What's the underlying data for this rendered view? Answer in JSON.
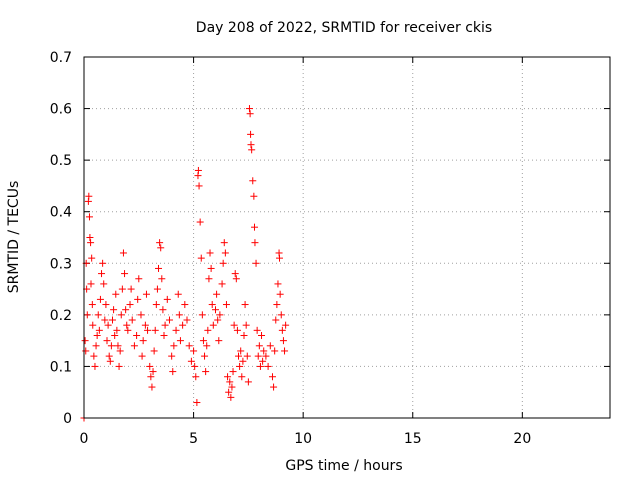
{
  "chart_data": {
    "type": "scatter",
    "title": "Day 208 of 2022, SRMTID for receiver ckis",
    "xlabel": "GPS time / hours",
    "ylabel": "SRMTID / TECUs",
    "xlim": [
      0,
      24
    ],
    "ylim": [
      0,
      0.7
    ],
    "grid": true,
    "marker": "+",
    "marker_color": "#ff0000",
    "x_ticks": [
      {
        "value": 0,
        "label": "0"
      },
      {
        "value": 5,
        "label": "5"
      },
      {
        "value": 10,
        "label": "10"
      },
      {
        "value": 15,
        "label": "15"
      },
      {
        "value": 20,
        "label": "20"
      }
    ],
    "y_ticks": [
      {
        "value": 0,
        "label": "0"
      },
      {
        "value": 0.1,
        "label": "0.1"
      },
      {
        "value": 0.2,
        "label": "0.2"
      },
      {
        "value": 0.3,
        "label": "0.3"
      },
      {
        "value": 0.4,
        "label": "0.4"
      },
      {
        "value": 0.5,
        "label": "0.5"
      },
      {
        "value": 0.6,
        "label": "0.6"
      },
      {
        "value": 0.7,
        "label": "0.7"
      }
    ],
    "series": [
      {
        "name": "SRMTID",
        "points": [
          [
            0.0,
            0.0
          ],
          [
            0.05,
            0.15
          ],
          [
            0.08,
            0.13
          ],
          [
            0.1,
            0.3
          ],
          [
            0.12,
            0.25
          ],
          [
            0.15,
            0.2
          ],
          [
            0.2,
            0.42
          ],
          [
            0.22,
            0.43
          ],
          [
            0.25,
            0.39
          ],
          [
            0.27,
            0.35
          ],
          [
            0.3,
            0.34
          ],
          [
            0.32,
            0.26
          ],
          [
            0.35,
            0.31
          ],
          [
            0.38,
            0.22
          ],
          [
            0.4,
            0.18
          ],
          [
            0.45,
            0.12
          ],
          [
            0.5,
            0.1
          ],
          [
            0.55,
            0.14
          ],
          [
            0.6,
            0.16
          ],
          [
            0.65,
            0.2
          ],
          [
            0.7,
            0.17
          ],
          [
            0.75,
            0.23
          ],
          [
            0.8,
            0.28
          ],
          [
            0.85,
            0.3
          ],
          [
            0.9,
            0.26
          ],
          [
            0.95,
            0.19
          ],
          [
            1.0,
            0.22
          ],
          [
            1.05,
            0.15
          ],
          [
            1.1,
            0.18
          ],
          [
            1.15,
            0.12
          ],
          [
            1.2,
            0.11
          ],
          [
            1.25,
            0.14
          ],
          [
            1.3,
            0.19
          ],
          [
            1.35,
            0.21
          ],
          [
            1.4,
            0.16
          ],
          [
            1.45,
            0.24
          ],
          [
            1.5,
            0.17
          ],
          [
            1.55,
            0.14
          ],
          [
            1.6,
            0.1
          ],
          [
            1.65,
            0.13
          ],
          [
            1.7,
            0.2
          ],
          [
            1.75,
            0.25
          ],
          [
            1.8,
            0.32
          ],
          [
            1.85,
            0.28
          ],
          [
            1.9,
            0.21
          ],
          [
            1.95,
            0.18
          ],
          [
            2.0,
            0.17
          ],
          [
            2.1,
            0.22
          ],
          [
            2.15,
            0.25
          ],
          [
            2.2,
            0.19
          ],
          [
            2.3,
            0.14
          ],
          [
            2.4,
            0.16
          ],
          [
            2.45,
            0.23
          ],
          [
            2.5,
            0.27
          ],
          [
            2.6,
            0.2
          ],
          [
            2.65,
            0.12
          ],
          [
            2.7,
            0.15
          ],
          [
            2.8,
            0.18
          ],
          [
            2.85,
            0.24
          ],
          [
            2.9,
            0.17
          ],
          [
            3.0,
            0.1
          ],
          [
            3.05,
            0.08
          ],
          [
            3.1,
            0.06
          ],
          [
            3.15,
            0.09
          ],
          [
            3.2,
            0.13
          ],
          [
            3.25,
            0.17
          ],
          [
            3.3,
            0.22
          ],
          [
            3.35,
            0.25
          ],
          [
            3.4,
            0.29
          ],
          [
            3.45,
            0.34
          ],
          [
            3.5,
            0.33
          ],
          [
            3.55,
            0.27
          ],
          [
            3.6,
            0.21
          ],
          [
            3.65,
            0.16
          ],
          [
            3.7,
            0.18
          ],
          [
            3.8,
            0.23
          ],
          [
            3.9,
            0.19
          ],
          [
            4.0,
            0.12
          ],
          [
            4.05,
            0.09
          ],
          [
            4.1,
            0.14
          ],
          [
            4.2,
            0.17
          ],
          [
            4.3,
            0.24
          ],
          [
            4.35,
            0.2
          ],
          [
            4.4,
            0.15
          ],
          [
            4.5,
            0.18
          ],
          [
            4.6,
            0.22
          ],
          [
            4.7,
            0.19
          ],
          [
            4.8,
            0.14
          ],
          [
            4.9,
            0.11
          ],
          [
            5.0,
            0.13
          ],
          [
            5.05,
            0.1
          ],
          [
            5.1,
            0.08
          ],
          [
            5.15,
            0.03
          ],
          [
            5.2,
            0.47
          ],
          [
            5.22,
            0.48
          ],
          [
            5.25,
            0.45
          ],
          [
            5.3,
            0.38
          ],
          [
            5.35,
            0.31
          ],
          [
            5.4,
            0.2
          ],
          [
            5.45,
            0.15
          ],
          [
            5.5,
            0.12
          ],
          [
            5.55,
            0.09
          ],
          [
            5.6,
            0.14
          ],
          [
            5.65,
            0.17
          ],
          [
            5.7,
            0.27
          ],
          [
            5.75,
            0.32
          ],
          [
            5.8,
            0.29
          ],
          [
            5.85,
            0.22
          ],
          [
            5.9,
            0.18
          ],
          [
            6.0,
            0.21
          ],
          [
            6.05,
            0.24
          ],
          [
            6.1,
            0.19
          ],
          [
            6.15,
            0.15
          ],
          [
            6.2,
            0.2
          ],
          [
            6.3,
            0.26
          ],
          [
            6.35,
            0.3
          ],
          [
            6.4,
            0.34
          ],
          [
            6.45,
            0.32
          ],
          [
            6.5,
            0.22
          ],
          [
            6.55,
            0.08
          ],
          [
            6.6,
            0.05
          ],
          [
            6.65,
            0.07
          ],
          [
            6.7,
            0.04
          ],
          [
            6.75,
            0.06
          ],
          [
            6.8,
            0.09
          ],
          [
            6.85,
            0.18
          ],
          [
            6.9,
            0.28
          ],
          [
            6.95,
            0.27
          ],
          [
            7.0,
            0.17
          ],
          [
            7.05,
            0.12
          ],
          [
            7.1,
            0.1
          ],
          [
            7.15,
            0.13
          ],
          [
            7.2,
            0.08
          ],
          [
            7.25,
            0.11
          ],
          [
            7.3,
            0.16
          ],
          [
            7.35,
            0.22
          ],
          [
            7.4,
            0.18
          ],
          [
            7.45,
            0.12
          ],
          [
            7.5,
            0.07
          ],
          [
            7.55,
            0.6
          ],
          [
            7.58,
            0.59
          ],
          [
            7.6,
            0.55
          ],
          [
            7.62,
            0.53
          ],
          [
            7.65,
            0.52
          ],
          [
            7.7,
            0.46
          ],
          [
            7.75,
            0.43
          ],
          [
            7.78,
            0.37
          ],
          [
            7.8,
            0.34
          ],
          [
            7.85,
            0.3
          ],
          [
            7.9,
            0.17
          ],
          [
            7.95,
            0.12
          ],
          [
            8.0,
            0.14
          ],
          [
            8.05,
            0.1
          ],
          [
            8.1,
            0.16
          ],
          [
            8.15,
            0.11
          ],
          [
            8.2,
            0.13
          ],
          [
            8.3,
            0.12
          ],
          [
            8.4,
            0.1
          ],
          [
            8.5,
            0.14
          ],
          [
            8.6,
            0.08
          ],
          [
            8.65,
            0.06
          ],
          [
            8.7,
            0.13
          ],
          [
            8.75,
            0.19
          ],
          [
            8.8,
            0.22
          ],
          [
            8.85,
            0.26
          ],
          [
            8.9,
            0.32
          ],
          [
            8.92,
            0.31
          ],
          [
            8.95,
            0.24
          ],
          [
            9.0,
            0.2
          ],
          [
            9.05,
            0.17
          ],
          [
            9.1,
            0.15
          ],
          [
            9.15,
            0.13
          ],
          [
            9.2,
            0.18
          ]
        ]
      }
    ]
  }
}
